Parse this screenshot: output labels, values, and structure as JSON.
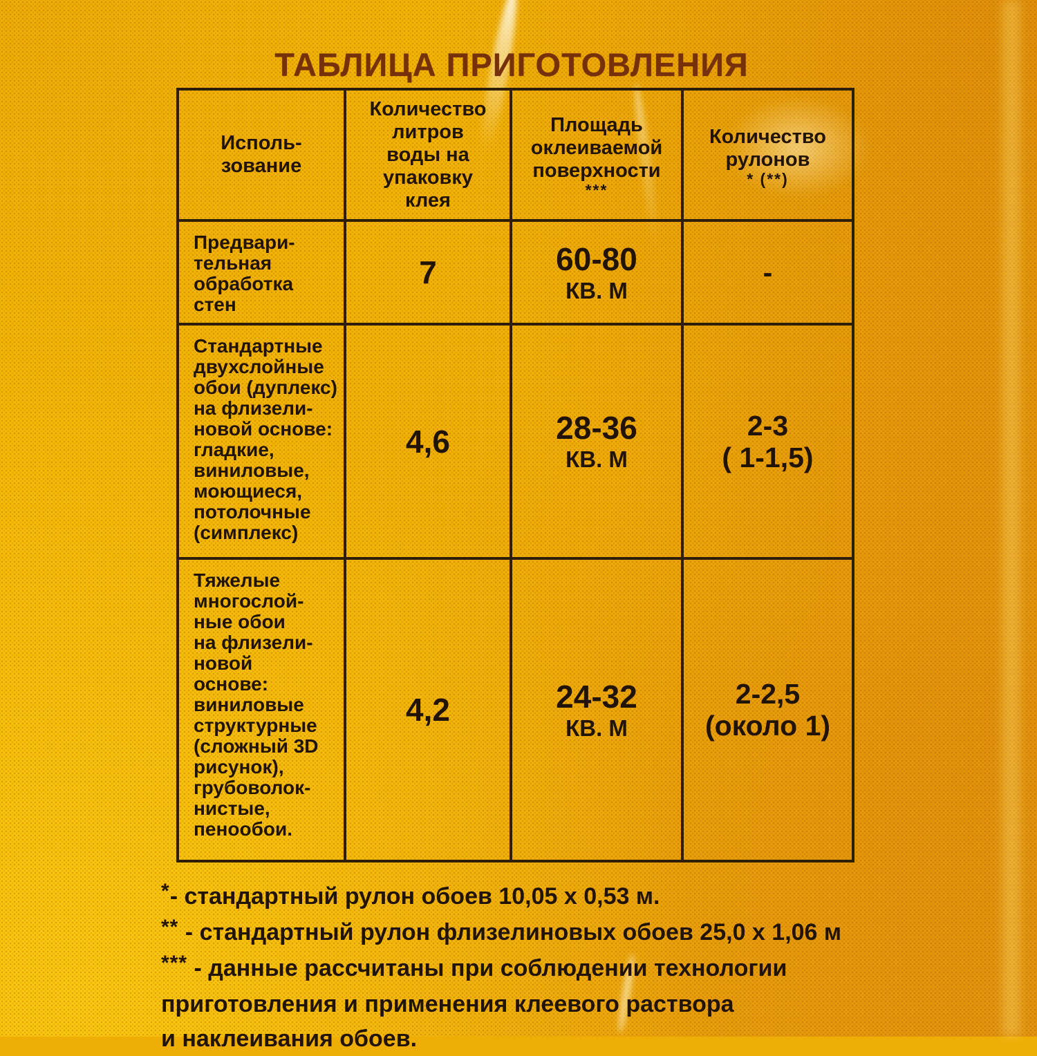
{
  "page": {
    "title": "ТАБЛИЦА ПРИГОТОВЛЕНИЯ"
  },
  "table": {
    "columns": [
      {
        "label": "Исполь-\nзование",
        "note": ""
      },
      {
        "label": "Количество\nлитров\nводы на\nупаковку\nклея",
        "note": ""
      },
      {
        "label": "Площадь\nоклеиваемой\nповерхности",
        "note": "***"
      },
      {
        "label": "Количество\nрулонов",
        "note": "* (**)"
      }
    ],
    "rows": [
      {
        "usage": "Предвари-\nтельная\nобработка\nстен",
        "water_liters": "7",
        "area_value": "60-80",
        "area_unit": "КВ. М",
        "rolls_value": "-",
        "rolls_note": ""
      },
      {
        "usage": "Стандартные\nдвухслойные\nобои (дуплекс)\nна флизели-\nновой основе:\nгладкие,\nвиниловые,\nмоющиеся,\nпотолочные\n(симплекс)",
        "water_liters": "4,6",
        "area_value": "28-36",
        "area_unit": "КВ. М",
        "rolls_value": "2-3",
        "rolls_note": "( 1-1,5)"
      },
      {
        "usage": "Тяжелые\nмногослой-\nные обои\nна флизели-\nновой\nоснове:\nвиниловые\nструктурные\n(сложный 3D\nрисунок),\nгрубоволок-\nнистые,\nпенообои.",
        "water_liters": "4,2",
        "area_value": "24-32",
        "area_unit": "КВ. М",
        "rolls_value": "2-2,5",
        "rolls_note": "(около 1)"
      }
    ]
  },
  "footnotes": [
    {
      "marker": "*",
      "text": "- стандартный рулон обоев 10,05 x 0,53 м."
    },
    {
      "marker": "**",
      "text": " - стандартный рулон флизелиновых обоев 25,0 x 1,06 м"
    },
    {
      "marker": "***",
      "text": " - данные рассчитаны при соблюдении технологии"
    },
    {
      "marker": "",
      "text": "приготовления и применения клеевого раствора"
    },
    {
      "marker": "",
      "text": "и наклеивания обоев."
    }
  ],
  "colors": {
    "background_yellow": "#f6c004",
    "background_orange": "#e49a0e",
    "title_red": "#76300a",
    "text_dark": "#221404",
    "border_dark": "#2e1e08"
  }
}
